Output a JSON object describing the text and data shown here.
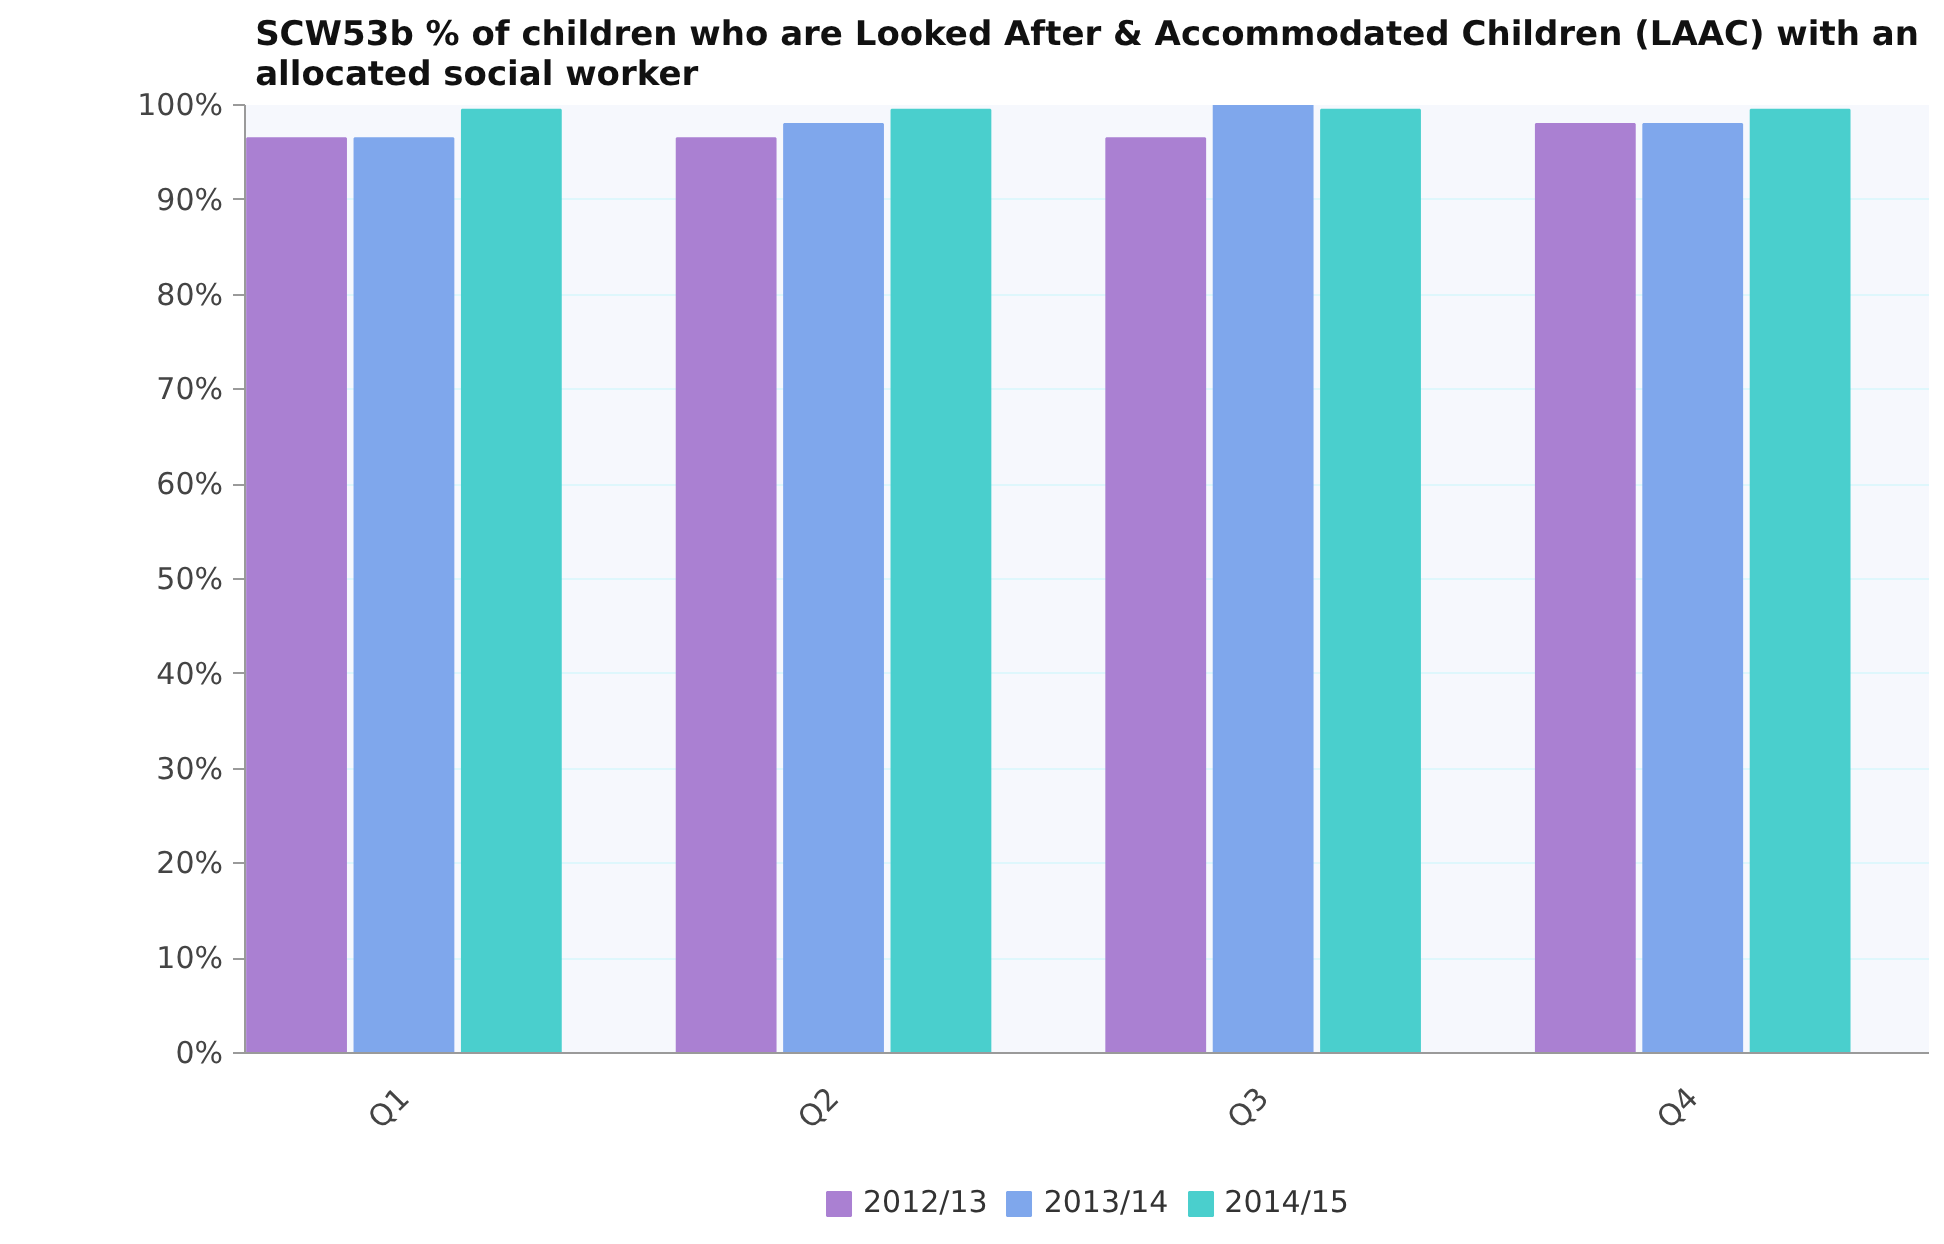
{
  "chart_data": {
    "type": "bar",
    "title": "SCW53b % of children who are Looked After & Accommodated Children (LAAC) with an allocated social worker",
    "categories": [
      "Q1",
      "Q2",
      "Q3",
      "Q4"
    ],
    "series": [
      {
        "name": "2012/13",
        "color": "#aa80d2",
        "values": [
          96.5,
          96.5,
          96.5,
          98
        ]
      },
      {
        "name": "2013/14",
        "color": "#7fa7ec",
        "values": [
          96.5,
          98,
          100,
          98
        ]
      },
      {
        "name": "2014/15",
        "color": "#4acfcd",
        "values": [
          99.5,
          99.5,
          99.5,
          99.5
        ]
      }
    ],
    "ylim": [
      0,
      100
    ],
    "yticks": [
      {
        "value": 0,
        "label": "0%"
      },
      {
        "value": 10,
        "label": "10%"
      },
      {
        "value": 20,
        "label": "20%"
      },
      {
        "value": 30,
        "label": "30%"
      },
      {
        "value": 40,
        "label": "40%"
      },
      {
        "value": 50,
        "label": "50%"
      },
      {
        "value": 60,
        "label": "60%"
      },
      {
        "value": 70,
        "label": "70%"
      },
      {
        "value": 80,
        "label": "80%"
      },
      {
        "value": 90,
        "label": "90%"
      },
      {
        "value": 100,
        "label": "100%"
      }
    ],
    "grid": "y",
    "legend": "bottom"
  }
}
